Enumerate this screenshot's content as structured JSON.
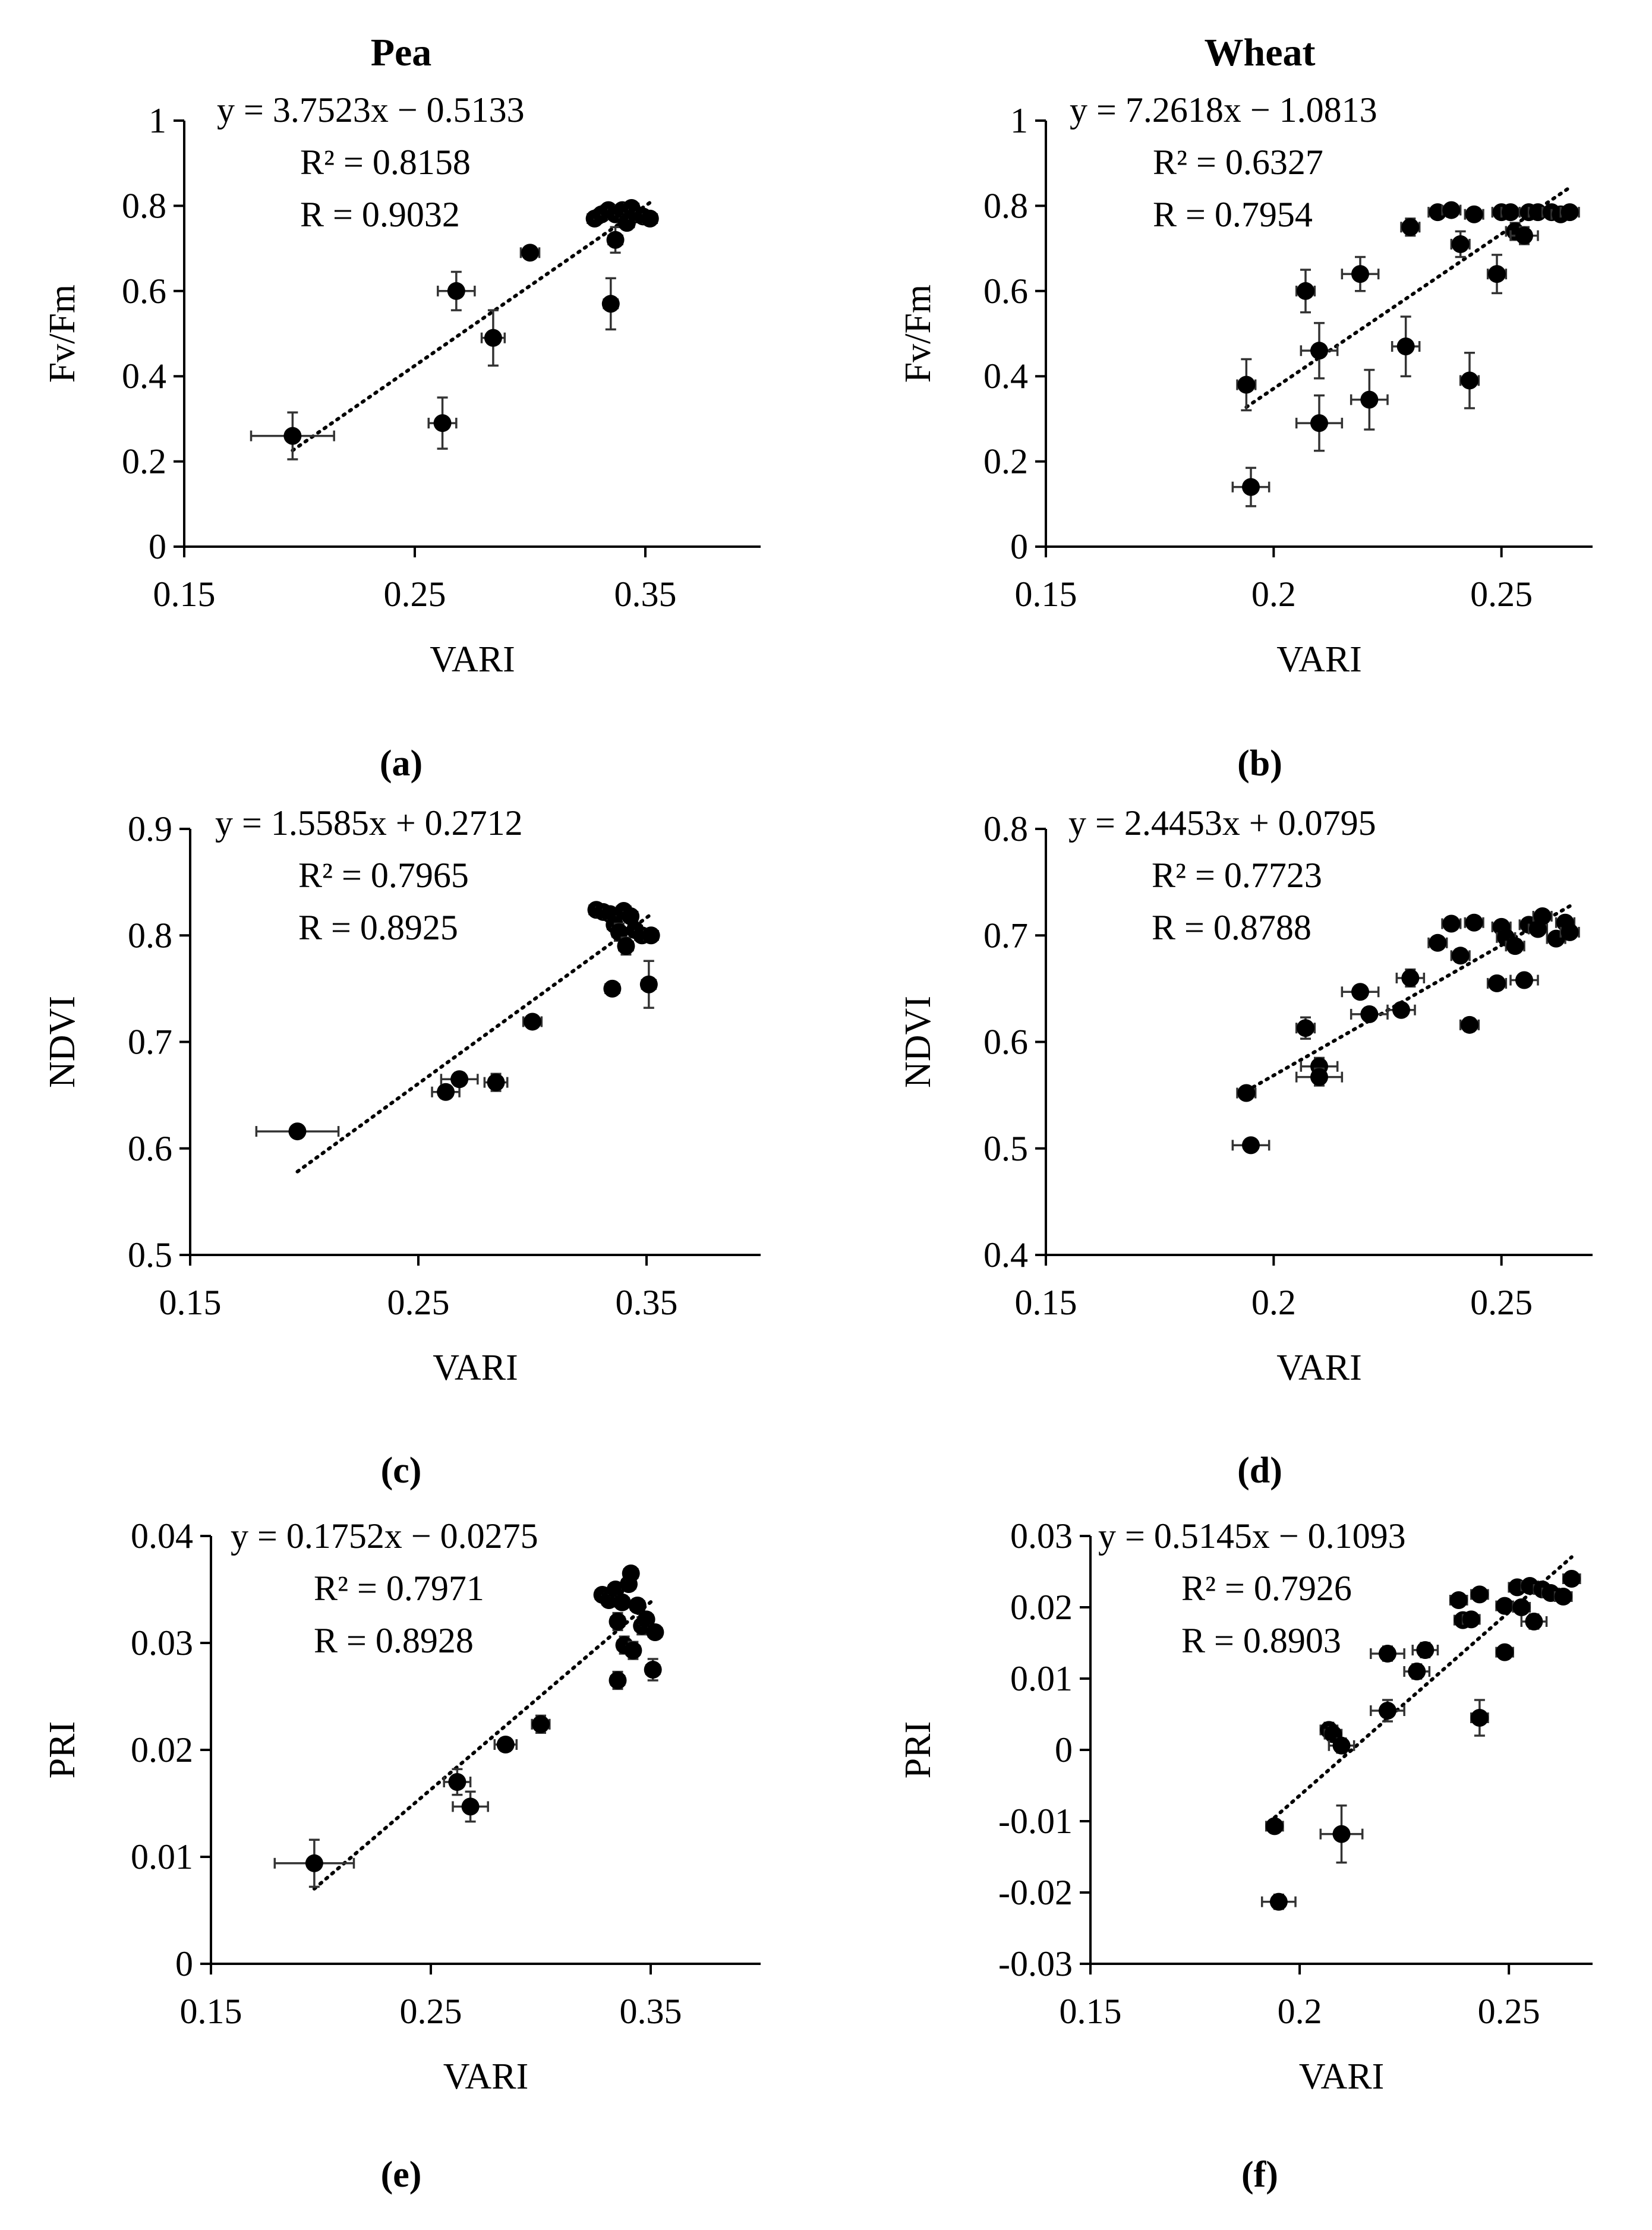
{
  "column_titles": [
    "Pea",
    "Wheat"
  ],
  "chart_data": [
    {
      "id": "a",
      "type": "scatter",
      "panel_label": "(a)",
      "xlabel": "VARI",
      "ylabel": "Fv/Fm",
      "xlim": [
        0.15,
        0.4
      ],
      "xticks": [
        0.15,
        0.25,
        0.35
      ],
      "xtick_labels": [
        "0.15",
        "0.25",
        "0.35"
      ],
      "ylim": [
        0,
        1
      ],
      "yticks": [
        0,
        0.2,
        0.4,
        0.6,
        0.8,
        1
      ],
      "ytick_labels": [
        "0",
        "0.2",
        "0.4",
        "0.6",
        "0.8",
        "1"
      ],
      "equation": "y = 3.7523x − 0.5133",
      "r2_text": "R² = 0.8158",
      "r_text": "R = 0.9032",
      "trendline": {
        "slope": 3.7523,
        "intercept": -0.5133,
        "x_range": [
          0.197,
          0.352
        ]
      },
      "points": [
        {
          "x": 0.197,
          "y": 0.26,
          "xe": 0.018,
          "ye": 0.055
        },
        {
          "x": 0.262,
          "y": 0.29,
          "xe": 0.006,
          "ye": 0.06
        },
        {
          "x": 0.268,
          "y": 0.6,
          "xe": 0.008,
          "ye": 0.045
        },
        {
          "x": 0.284,
          "y": 0.49,
          "xe": 0.005,
          "ye": 0.065
        },
        {
          "x": 0.3,
          "y": 0.69,
          "xe": 0.004,
          "ye": 0.01
        },
        {
          "x": 0.335,
          "y": 0.57,
          "xe": 0.003,
          "ye": 0.06
        },
        {
          "x": 0.337,
          "y": 0.72,
          "xe": 0.003,
          "ye": 0.03
        },
        {
          "x": 0.328,
          "y": 0.77,
          "xe": 0.003,
          "ye": 0.01
        },
        {
          "x": 0.331,
          "y": 0.78,
          "xe": 0.003,
          "ye": 0.01
        },
        {
          "x": 0.334,
          "y": 0.79,
          "xe": 0.003,
          "ye": 0.01
        },
        {
          "x": 0.337,
          "y": 0.78,
          "xe": 0.003,
          "ye": 0.01
        },
        {
          "x": 0.34,
          "y": 0.79,
          "xe": 0.003,
          "ye": 0.01
        },
        {
          "x": 0.342,
          "y": 0.76,
          "xe": 0.003,
          "ye": 0.015
        },
        {
          "x": 0.344,
          "y": 0.795,
          "xe": 0.003,
          "ye": 0.01
        },
        {
          "x": 0.346,
          "y": 0.78,
          "xe": 0.003,
          "ye": 0.01
        },
        {
          "x": 0.349,
          "y": 0.775,
          "xe": 0.003,
          "ye": 0.01
        },
        {
          "x": 0.352,
          "y": 0.77,
          "xe": 0.003,
          "ye": 0.01
        }
      ]
    },
    {
      "id": "b",
      "type": "scatter",
      "panel_label": "(b)",
      "xlabel": "VARI",
      "ylabel": "Fv/Fm",
      "xlim": [
        0.15,
        0.27
      ],
      "xticks": [
        0.15,
        0.2,
        0.25
      ],
      "xtick_labels": [
        "0.15",
        "0.2",
        "0.25"
      ],
      "ylim": [
        0,
        1
      ],
      "yticks": [
        0,
        0.2,
        0.4,
        0.6,
        0.8,
        1
      ],
      "ytick_labels": [
        "0",
        "0.2",
        "0.4",
        "0.6",
        "0.8",
        "1"
      ],
      "equation": "y = 7.2618x − 1.0813",
      "r2_text": "R² = 0.6327",
      "r_text": "R = 0.7954",
      "trendline": {
        "slope": 7.2618,
        "intercept": -1.0813,
        "x_range": [
          0.194,
          0.265
        ]
      },
      "points": [
        {
          "x": 0.194,
          "y": 0.38,
          "xe": 0.002,
          "ye": 0.06
        },
        {
          "x": 0.195,
          "y": 0.14,
          "xe": 0.004,
          "ye": 0.045
        },
        {
          "x": 0.207,
          "y": 0.6,
          "xe": 0.002,
          "ye": 0.05
        },
        {
          "x": 0.21,
          "y": 0.46,
          "xe": 0.004,
          "ye": 0.065
        },
        {
          "x": 0.21,
          "y": 0.29,
          "xe": 0.005,
          "ye": 0.065
        },
        {
          "x": 0.219,
          "y": 0.64,
          "xe": 0.004,
          "ye": 0.04
        },
        {
          "x": 0.221,
          "y": 0.345,
          "xe": 0.004,
          "ye": 0.07
        },
        {
          "x": 0.229,
          "y": 0.47,
          "xe": 0.003,
          "ye": 0.07
        },
        {
          "x": 0.23,
          "y": 0.75,
          "xe": 0.002,
          "ye": 0.02
        },
        {
          "x": 0.236,
          "y": 0.785,
          "xe": 0.002,
          "ye": 0.01
        },
        {
          "x": 0.239,
          "y": 0.79,
          "xe": 0.002,
          "ye": 0.01
        },
        {
          "x": 0.241,
          "y": 0.71,
          "xe": 0.002,
          "ye": 0.03
        },
        {
          "x": 0.243,
          "y": 0.39,
          "xe": 0.002,
          "ye": 0.065
        },
        {
          "x": 0.244,
          "y": 0.78,
          "xe": 0.002,
          "ye": 0.01
        },
        {
          "x": 0.249,
          "y": 0.64,
          "xe": 0.002,
          "ye": 0.045
        },
        {
          "x": 0.25,
          "y": 0.785,
          "xe": 0.002,
          "ye": 0.01
        },
        {
          "x": 0.252,
          "y": 0.785,
          "xe": 0.002,
          "ye": 0.01
        },
        {
          "x": 0.253,
          "y": 0.74,
          "xe": 0.002,
          "ye": 0.02
        },
        {
          "x": 0.255,
          "y": 0.73,
          "xe": 0.003,
          "ye": 0.02
        },
        {
          "x": 0.256,
          "y": 0.785,
          "xe": 0.002,
          "ye": 0.01
        },
        {
          "x": 0.258,
          "y": 0.785,
          "xe": 0.002,
          "ye": 0.01
        },
        {
          "x": 0.261,
          "y": 0.785,
          "xe": 0.002,
          "ye": 0.01
        },
        {
          "x": 0.263,
          "y": 0.78,
          "xe": 0.002,
          "ye": 0.01
        },
        {
          "x": 0.265,
          "y": 0.785,
          "xe": 0.002,
          "ye": 0.01
        }
      ]
    },
    {
      "id": "c",
      "type": "scatter",
      "panel_label": "(c)",
      "xlabel": "VARI",
      "ylabel": "NDVI",
      "xlim": [
        0.15,
        0.4
      ],
      "xticks": [
        0.15,
        0.25,
        0.35
      ],
      "xtick_labels": [
        "0.15",
        "0.25",
        "0.35"
      ],
      "ylim": [
        0.5,
        0.9
      ],
      "yticks": [
        0.5,
        0.6,
        0.7,
        0.8,
        0.9
      ],
      "ytick_labels": [
        "0.5",
        "0.6",
        "0.7",
        "0.8",
        "0.9"
      ],
      "equation": "y = 1.5585x + 0.2712",
      "r2_text": "R² = 0.7965",
      "r_text": "R = 0.8925",
      "trendline": {
        "slope": 1.5585,
        "intercept": 0.2712,
        "x_range": [
          0.197,
          0.352
        ]
      },
      "points": [
        {
          "x": 0.197,
          "y": 0.616,
          "xe": 0.018,
          "ye": 0.004
        },
        {
          "x": 0.262,
          "y": 0.653,
          "xe": 0.006,
          "ye": 0.006
        },
        {
          "x": 0.268,
          "y": 0.665,
          "xe": 0.008,
          "ye": 0.006
        },
        {
          "x": 0.284,
          "y": 0.662,
          "xe": 0.005,
          "ye": 0.008
        },
        {
          "x": 0.3,
          "y": 0.719,
          "xe": 0.004,
          "ye": 0.004
        },
        {
          "x": 0.335,
          "y": 0.75,
          "xe": 0.003,
          "ye": 0.005
        },
        {
          "x": 0.328,
          "y": 0.824,
          "xe": 0.003,
          "ye": 0.004
        },
        {
          "x": 0.331,
          "y": 0.822,
          "xe": 0.003,
          "ye": 0.004
        },
        {
          "x": 0.334,
          "y": 0.82,
          "xe": 0.003,
          "ye": 0.004
        },
        {
          "x": 0.336,
          "y": 0.81,
          "xe": 0.003,
          "ye": 0.004
        },
        {
          "x": 0.338,
          "y": 0.803,
          "xe": 0.003,
          "ye": 0.008
        },
        {
          "x": 0.34,
          "y": 0.823,
          "xe": 0.003,
          "ye": 0.005
        },
        {
          "x": 0.341,
          "y": 0.79,
          "xe": 0.003,
          "ye": 0.008
        },
        {
          "x": 0.343,
          "y": 0.818,
          "xe": 0.003,
          "ye": 0.005
        },
        {
          "x": 0.345,
          "y": 0.805,
          "xe": 0.003,
          "ye": 0.005
        },
        {
          "x": 0.348,
          "y": 0.8,
          "xe": 0.003,
          "ye": 0.005
        },
        {
          "x": 0.351,
          "y": 0.754,
          "xe": 0.003,
          "ye": 0.022
        },
        {
          "x": 0.352,
          "y": 0.8,
          "xe": 0.003,
          "ye": 0.005
        }
      ]
    },
    {
      "id": "d",
      "type": "scatter",
      "panel_label": "(d)",
      "xlabel": "VARI",
      "ylabel": "NDVI",
      "xlim": [
        0.15,
        0.27
      ],
      "xticks": [
        0.15,
        0.2,
        0.25
      ],
      "xtick_labels": [
        "0.15",
        "0.2",
        "0.25"
      ],
      "ylim": [
        0.4,
        0.8
      ],
      "yticks": [
        0.4,
        0.5,
        0.6,
        0.7,
        0.8
      ],
      "ytick_labels": [
        "0.4",
        "0.5",
        "0.6",
        "0.7",
        "0.8"
      ],
      "equation": "y = 2.4453x + 0.0795",
      "r2_text": "R² = 0.7723",
      "r_text": "R = 0.8788",
      "trendline": {
        "slope": 2.4453,
        "intercept": 0.0795,
        "x_range": [
          0.194,
          0.265
        ]
      },
      "points": [
        {
          "x": 0.194,
          "y": 0.552,
          "xe": 0.002,
          "ye": 0.005
        },
        {
          "x": 0.195,
          "y": 0.503,
          "xe": 0.004,
          "ye": 0.004
        },
        {
          "x": 0.207,
          "y": 0.613,
          "xe": 0.002,
          "ye": 0.01
        },
        {
          "x": 0.21,
          "y": 0.577,
          "xe": 0.004,
          "ye": 0.008
        },
        {
          "x": 0.21,
          "y": 0.567,
          "xe": 0.005,
          "ye": 0.008
        },
        {
          "x": 0.219,
          "y": 0.647,
          "xe": 0.004,
          "ye": 0.005
        },
        {
          "x": 0.221,
          "y": 0.626,
          "xe": 0.004,
          "ye": 0.006
        },
        {
          "x": 0.228,
          "y": 0.63,
          "xe": 0.003,
          "ye": 0.005
        },
        {
          "x": 0.23,
          "y": 0.66,
          "xe": 0.003,
          "ye": 0.008
        },
        {
          "x": 0.236,
          "y": 0.693,
          "xe": 0.002,
          "ye": 0.005
        },
        {
          "x": 0.239,
          "y": 0.711,
          "xe": 0.002,
          "ye": 0.005
        },
        {
          "x": 0.241,
          "y": 0.681,
          "xe": 0.002,
          "ye": 0.006
        },
        {
          "x": 0.243,
          "y": 0.616,
          "xe": 0.002,
          "ye": 0.006
        },
        {
          "x": 0.244,
          "y": 0.712,
          "xe": 0.002,
          "ye": 0.005
        },
        {
          "x": 0.249,
          "y": 0.655,
          "xe": 0.002,
          "ye": 0.004
        },
        {
          "x": 0.25,
          "y": 0.708,
          "xe": 0.002,
          "ye": 0.005
        },
        {
          "x": 0.251,
          "y": 0.698,
          "xe": 0.002,
          "ye": 0.006
        },
        {
          "x": 0.253,
          "y": 0.69,
          "xe": 0.002,
          "ye": 0.006
        },
        {
          "x": 0.255,
          "y": 0.658,
          "xe": 0.003,
          "ye": 0.004
        },
        {
          "x": 0.256,
          "y": 0.71,
          "xe": 0.002,
          "ye": 0.005
        },
        {
          "x": 0.258,
          "y": 0.706,
          "xe": 0.002,
          "ye": 0.005
        },
        {
          "x": 0.259,
          "y": 0.718,
          "xe": 0.002,
          "ye": 0.005
        },
        {
          "x": 0.262,
          "y": 0.697,
          "xe": 0.002,
          "ye": 0.005
        },
        {
          "x": 0.264,
          "y": 0.712,
          "xe": 0.002,
          "ye": 0.005
        },
        {
          "x": 0.265,
          "y": 0.703,
          "xe": 0.002,
          "ye": 0.005
        }
      ]
    },
    {
      "id": "e",
      "type": "scatter",
      "panel_label": "(e)",
      "xlabel": "VARI",
      "ylabel": "PRI",
      "xlim": [
        0.15,
        0.4
      ],
      "xticks": [
        0.15,
        0.25,
        0.35
      ],
      "xtick_labels": [
        "0.15",
        "0.25",
        "0.35"
      ],
      "ylim": [
        0,
        0.04
      ],
      "yticks": [
        0,
        0.01,
        0.02,
        0.03,
        0.04
      ],
      "ytick_labels": [
        "0",
        "0.01",
        "0.02",
        "0.03",
        "0.04"
      ],
      "equation": "y = 0.1752x − 0.0275",
      "r2_text": "R² = 0.7971",
      "r_text": "R = 0.8928",
      "trendline": {
        "slope": 0.1752,
        "intercept": -0.0275,
        "x_range": [
          0.197,
          0.352
        ]
      },
      "points": [
        {
          "x": 0.197,
          "y": 0.0094,
          "xe": 0.018,
          "ye": 0.0022
        },
        {
          "x": 0.262,
          "y": 0.017,
          "xe": 0.006,
          "ye": 0.0012
        },
        {
          "x": 0.268,
          "y": 0.0147,
          "xe": 0.008,
          "ye": 0.0014
        },
        {
          "x": 0.284,
          "y": 0.0205,
          "xe": 0.005,
          "ye": 0.0006
        },
        {
          "x": 0.3,
          "y": 0.0224,
          "xe": 0.004,
          "ye": 0.0008
        },
        {
          "x": 0.335,
          "y": 0.0265,
          "xe": 0.003,
          "ye": 0.0008
        },
        {
          "x": 0.328,
          "y": 0.0345,
          "xe": 0.003,
          "ye": 0.0006
        },
        {
          "x": 0.331,
          "y": 0.034,
          "xe": 0.003,
          "ye": 0.0006
        },
        {
          "x": 0.334,
          "y": 0.035,
          "xe": 0.003,
          "ye": 0.0006
        },
        {
          "x": 0.335,
          "y": 0.032,
          "xe": 0.003,
          "ye": 0.0008
        },
        {
          "x": 0.337,
          "y": 0.0338,
          "xe": 0.003,
          "ye": 0.0006
        },
        {
          "x": 0.338,
          "y": 0.0298,
          "xe": 0.003,
          "ye": 0.0008
        },
        {
          "x": 0.34,
          "y": 0.0355,
          "xe": 0.003,
          "ye": 0.0006
        },
        {
          "x": 0.341,
          "y": 0.0365,
          "xe": 0.003,
          "ye": 0.0006
        },
        {
          "x": 0.342,
          "y": 0.0293,
          "xe": 0.003,
          "ye": 0.0008
        },
        {
          "x": 0.344,
          "y": 0.0335,
          "xe": 0.003,
          "ye": 0.0006
        },
        {
          "x": 0.346,
          "y": 0.0316,
          "xe": 0.003,
          "ye": 0.0008
        },
        {
          "x": 0.348,
          "y": 0.0322,
          "xe": 0.003,
          "ye": 0.0006
        },
        {
          "x": 0.351,
          "y": 0.0275,
          "xe": 0.003,
          "ye": 0.001
        },
        {
          "x": 0.352,
          "y": 0.031,
          "xe": 0.003,
          "ye": 0.0006
        }
      ]
    },
    {
      "id": "f",
      "type": "scatter",
      "panel_label": "(f)",
      "xlabel": "VARI",
      "ylabel": "PRI",
      "xlim": [
        0.15,
        0.27
      ],
      "xticks": [
        0.15,
        0.2,
        0.25
      ],
      "xtick_labels": [
        "0.15",
        "0.2",
        "0.25"
      ],
      "ylim": [
        -0.03,
        0.03
      ],
      "yticks": [
        -0.03,
        -0.02,
        -0.01,
        0,
        0.01,
        0.02,
        0.03
      ],
      "ytick_labels": [
        "-0.03",
        "-0.02",
        "-0.01",
        "0",
        "0.01",
        "0.02",
        "0.03"
      ],
      "equation": "y = 0.5145x − 0.1093",
      "r2_text": "R² = 0.7926",
      "r_text": "R = 0.8903",
      "trendline": {
        "slope": 0.5145,
        "intercept": -0.1093,
        "x_range": [
          0.194,
          0.265
        ]
      },
      "points": [
        {
          "x": 0.194,
          "y": -0.0107,
          "xe": 0.002,
          "ye": 0.0008
        },
        {
          "x": 0.195,
          "y": -0.0213,
          "xe": 0.004,
          "ye": 0.001
        },
        {
          "x": 0.207,
          "y": 0.0028,
          "xe": 0.002,
          "ye": 0.001
        },
        {
          "x": 0.208,
          "y": 0.0022,
          "xe": 0.002,
          "ye": 0.001
        },
        {
          "x": 0.21,
          "y": 0.0006,
          "xe": 0.003,
          "ye": 0.001
        },
        {
          "x": 0.21,
          "y": -0.0118,
          "xe": 0.005,
          "ye": 0.004
        },
        {
          "x": 0.221,
          "y": 0.0055,
          "xe": 0.004,
          "ye": 0.0015
        },
        {
          "x": 0.221,
          "y": 0.0135,
          "xe": 0.004,
          "ye": 0.001
        },
        {
          "x": 0.228,
          "y": 0.011,
          "xe": 0.003,
          "ye": 0.001
        },
        {
          "x": 0.23,
          "y": 0.014,
          "xe": 0.003,
          "ye": 0.001
        },
        {
          "x": 0.238,
          "y": 0.021,
          "xe": 0.002,
          "ye": 0.0008
        },
        {
          "x": 0.239,
          "y": 0.0182,
          "xe": 0.002,
          "ye": 0.0008
        },
        {
          "x": 0.241,
          "y": 0.0183,
          "xe": 0.002,
          "ye": 0.0008
        },
        {
          "x": 0.243,
          "y": 0.0218,
          "xe": 0.002,
          "ye": 0.0008
        },
        {
          "x": 0.243,
          "y": 0.0045,
          "xe": 0.002,
          "ye": 0.0025
        },
        {
          "x": 0.249,
          "y": 0.0202,
          "xe": 0.002,
          "ye": 0.0008
        },
        {
          "x": 0.249,
          "y": 0.0137,
          "xe": 0.002,
          "ye": 0.0008
        },
        {
          "x": 0.252,
          "y": 0.0228,
          "xe": 0.002,
          "ye": 0.0008
        },
        {
          "x": 0.253,
          "y": 0.02,
          "xe": 0.002,
          "ye": 0.0008
        },
        {
          "x": 0.255,
          "y": 0.023,
          "xe": 0.002,
          "ye": 0.0008
        },
        {
          "x": 0.256,
          "y": 0.018,
          "xe": 0.003,
          "ye": 0.001
        },
        {
          "x": 0.258,
          "y": 0.0225,
          "xe": 0.002,
          "ye": 0.0008
        },
        {
          "x": 0.26,
          "y": 0.022,
          "xe": 0.002,
          "ye": 0.0008
        },
        {
          "x": 0.263,
          "y": 0.0215,
          "xe": 0.002,
          "ye": 0.0008
        },
        {
          "x": 0.265,
          "y": 0.024,
          "xe": 0.002,
          "ye": 0.0008
        }
      ]
    }
  ]
}
